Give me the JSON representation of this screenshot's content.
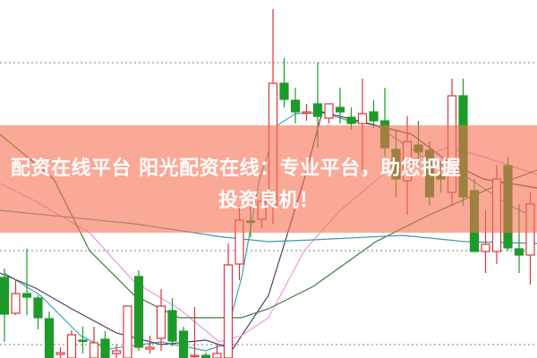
{
  "banner": {
    "line1": "配资在线平台 阳光配资在线：专业平台，助您把握",
    "line2": "投资良机！"
  },
  "colors": {
    "up": "#d9363e",
    "down": "#1e9a2a",
    "banner": "#f8a890",
    "grid": "#999999"
  },
  "chart_data": {
    "type": "candlestick",
    "title": "",
    "xlabel": "",
    "ylabel": "",
    "ylim": [
      0,
      40
    ],
    "grid": true,
    "grid_levels": [
      33,
      12,
      1.5
    ],
    "candles_ohlc": [
      [
        9.0,
        10.0,
        1.8,
        4.9
      ],
      [
        5.0,
        8.8,
        4.8,
        7.2
      ],
      [
        7.2,
        12.2,
        4.8,
        6.8
      ],
      [
        6.7,
        7.0,
        3.2,
        4.5
      ],
      [
        4.4,
        5.2,
        0,
        0
      ],
      [
        0.4,
        1.2,
        0,
        0.6
      ],
      [
        0,
        3.1,
        0,
        2.6
      ],
      [
        2.0,
        3.5,
        0.5,
        1.9
      ],
      [
        0,
        3.5,
        0,
        1.7
      ],
      [
        2.1,
        3.0,
        0,
        0
      ],
      [
        0.5,
        1.5,
        0,
        0.8
      ],
      [
        0,
        5.8,
        0,
        5.8
      ],
      [
        9.1,
        9.8,
        0.8,
        1.2
      ],
      [
        1.0,
        2.5,
        0.5,
        1.2
      ],
      [
        2.2,
        7.7,
        0.8,
        5.8
      ],
      [
        5.3,
        6.7,
        1.3,
        1.9
      ],
      [
        3.0,
        3.5,
        0,
        0
      ],
      [
        0.2,
        5.7,
        0,
        0.3
      ],
      [
        0.3,
        0.6,
        0,
        0
      ],
      [
        0,
        1.5,
        0,
        0.5
      ],
      [
        0,
        12.8,
        0,
        10.4
      ],
      [
        10.5,
        17.0,
        8.7,
        15.4
      ],
      [
        15.3,
        17.0,
        13.5,
        15.2
      ],
      [
        15.5,
        18.5,
        14.5,
        17.5
      ],
      [
        17.0,
        39.0,
        15.0,
        30.7
      ],
      [
        30.7,
        33.5,
        28.0,
        28.9
      ],
      [
        28.8,
        30.2,
        26.2,
        27.5
      ],
      [
        27.4,
        28.4,
        26.5,
        27.5
      ],
      [
        28.4,
        33.0,
        23.5,
        27.0
      ],
      [
        26.8,
        28.4,
        26.2,
        28.4
      ],
      [
        28.0,
        30.2,
        26.2,
        27.5
      ],
      [
        26.9,
        28.0,
        25.5,
        26.2
      ],
      [
        26.2,
        31.2,
        21.0,
        27.3
      ],
      [
        27.5,
        28.8,
        25.7,
        26.5
      ],
      [
        26.5,
        30.2,
        22.5,
        23.5
      ],
      [
        23.3,
        25.5,
        18.0,
        20.0
      ],
      [
        19.8,
        27.0,
        16.0,
        24.2
      ],
      [
        23.8,
        26.5,
        21.5,
        23.0
      ],
      [
        23.2,
        24.2,
        17.0,
        18.0
      ],
      [
        20.5,
        22.0,
        18.5,
        20.0
      ],
      [
        18.5,
        31.2,
        17.0,
        29.3
      ],
      [
        29.3,
        31.2,
        17.0,
        18.0
      ],
      [
        18.7,
        20.0,
        11.9,
        11.9
      ],
      [
        11.9,
        16.5,
        9.5,
        12.7
      ],
      [
        11.9,
        21.5,
        10.5,
        20.0
      ],
      [
        21.5,
        22.5,
        12.0,
        12.3
      ],
      [
        12.2,
        17.2,
        9.5,
        11.5
      ],
      [
        11.5,
        18.5,
        8.2,
        17.2
      ]
    ],
    "moving_averages": [
      {
        "color": "#3aa7b0",
        "points": [
          [
            0,
            9.5
          ],
          [
            3.2,
            7.0
          ],
          [
            6.8,
            2.5
          ],
          [
            9.2,
            1.0
          ],
          [
            14,
            1.8
          ],
          [
            18,
            0.8
          ],
          [
            19.6,
            1.5
          ],
          [
            21.2,
            9.0
          ],
          [
            22.8,
            20
          ],
          [
            24.4,
            26
          ],
          [
            26,
            27.3
          ],
          [
            28.4,
            27.4
          ],
          [
            30.8,
            26.5
          ],
          [
            33.2,
            26
          ],
          [
            35.6,
            24
          ],
          [
            38,
            22
          ],
          [
            40.4,
            21
          ],
          [
            42.8,
            19
          ],
          [
            45.2,
            17
          ],
          [
            47,
            16
          ]
        ]
      },
      {
        "color": "#5a3a6a",
        "points": [
          [
            -0.4,
            9.5
          ],
          [
            2.8,
            7.8
          ],
          [
            6,
            5.5
          ],
          [
            10,
            2.8
          ],
          [
            14,
            1.5
          ],
          [
            18,
            2.0
          ],
          [
            20.4,
            1.0
          ],
          [
            23.6,
            7.0
          ],
          [
            26.8,
            20
          ],
          [
            28.4,
            27.5
          ],
          [
            31.6,
            26.5
          ],
          [
            36.4,
            25
          ],
          [
            39.6,
            22
          ],
          [
            42.8,
            20
          ],
          [
            47.6,
            19
          ]
        ]
      },
      {
        "color": "#e89ae0",
        "points": [
          [
            -0.4,
            19.5
          ],
          [
            2.8,
            17.5
          ],
          [
            7.6,
            14
          ],
          [
            11.6,
            8.5
          ],
          [
            15.6,
            5.5
          ],
          [
            19.2,
            1.8
          ],
          [
            21.2,
            2.5
          ],
          [
            23.6,
            4.5
          ],
          [
            26.8,
            12
          ],
          [
            30,
            16.5
          ],
          [
            34.8,
            21.5
          ],
          [
            39.6,
            23.5
          ],
          [
            42.8,
            22.5
          ],
          [
            47.6,
            20.5
          ]
        ]
      },
      {
        "color": "#3d7a3d",
        "points": [
          [
            -0.4,
            25
          ],
          [
            4.4,
            20
          ],
          [
            7.6,
            12
          ],
          [
            11.6,
            7
          ],
          [
            15.6,
            4.5
          ],
          [
            21.2,
            4.5
          ],
          [
            23.6,
            5.5
          ],
          [
            27.6,
            8
          ],
          [
            33.2,
            13
          ],
          [
            38,
            16
          ],
          [
            44.4,
            19.5
          ],
          [
            47.6,
            21
          ]
        ]
      },
      {
        "color": "#3f9aa0",
        "points": [
          [
            -0.4,
            16.5
          ],
          [
            11.6,
            15
          ],
          [
            19.6,
            13.5
          ],
          [
            23.6,
            13
          ],
          [
            27.6,
            13.2
          ],
          [
            35.6,
            13.7
          ],
          [
            41.2,
            13
          ],
          [
            47.6,
            12.8
          ]
        ]
      }
    ]
  }
}
